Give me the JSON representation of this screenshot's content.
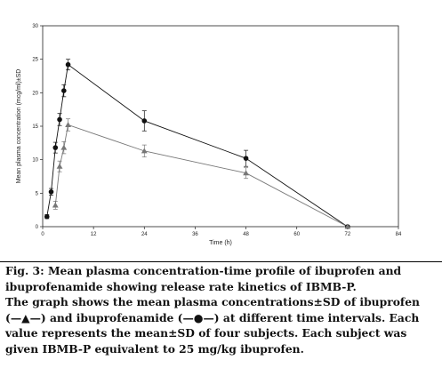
{
  "chart_data": {
    "type": "line",
    "title": "",
    "xlabel": "Time (h)",
    "ylabel": "Mean plasma concentration (mcg/ml)±SD",
    "xlim": [
      0,
      84
    ],
    "ylim": [
      0,
      30
    ],
    "xticks": [
      0,
      12,
      24,
      36,
      48,
      60,
      72,
      84
    ],
    "yticks": [
      0,
      5,
      10,
      15,
      20,
      25,
      30
    ],
    "grid": false,
    "legend": "none",
    "series": [
      {
        "marker": "circle",
        "color": "#111111",
        "points": [
          {
            "x": 1,
            "y": 1.5,
            "sd": 0.3
          },
          {
            "x": 2,
            "y": 5.2,
            "sd": 0.5
          },
          {
            "x": 3,
            "y": 11.8,
            "sd": 0.8
          },
          {
            "x": 4,
            "y": 16.0,
            "sd": 0.9
          },
          {
            "x": 5,
            "y": 20.3,
            "sd": 0.9
          },
          {
            "x": 6,
            "y": 24.2,
            "sd": 0.8
          },
          {
            "x": 24,
            "y": 15.8,
            "sd": 1.5
          },
          {
            "x": 48,
            "y": 10.2,
            "sd": 1.2
          },
          {
            "x": 72,
            "y": 0.0,
            "sd": 0.1
          }
        ]
      },
      {
        "marker": "triangle",
        "color": "#777777",
        "points": [
          {
            "x": 3,
            "y": 3.2,
            "sd": 0.6
          },
          {
            "x": 4,
            "y": 9.0,
            "sd": 0.8
          },
          {
            "x": 5,
            "y": 11.8,
            "sd": 0.9
          },
          {
            "x": 6,
            "y": 15.2,
            "sd": 0.9
          },
          {
            "x": 24,
            "y": 11.3,
            "sd": 0.9
          },
          {
            "x": 48,
            "y": 8.0,
            "sd": 0.8
          },
          {
            "x": 72,
            "y": 0.0,
            "sd": 0.1
          }
        ]
      }
    ]
  },
  "caption": {
    "line1": "Fig. 3: Mean plasma concentration-time profile of ibuprofen and ibuprofenamide showing release rate kinetics of IBMB-P.",
    "line2": "The graph shows the mean plasma concentrations±SD of ibuprofen (—▲—) and ibuprofenamide (—●—) at different time intervals. Each value represents the mean±SD of four subjects. Each subject was given IBMB-P equivalent to 25 mg/kg ibuprofen."
  }
}
